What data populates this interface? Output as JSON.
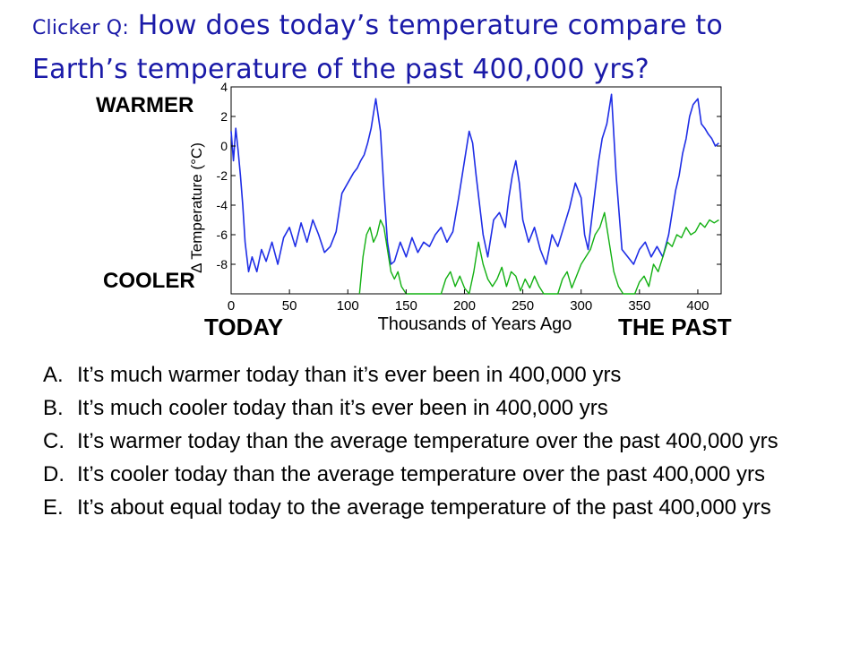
{
  "question": {
    "prefix": "Clicker Q:",
    "text_line1": "How does today’s temperature compare to",
    "text_line2": "Earth’s temperature of the past 400,000 yrs?"
  },
  "labels": {
    "warmer": "WARMER",
    "cooler": "COOLER",
    "today": "TODAY",
    "the_past": "THE PAST"
  },
  "answers": [
    {
      "letter": "A.",
      "text": "It’s much warmer today than it’s ever been in 400,000 yrs"
    },
    {
      "letter": "B.",
      "text": "It’s much cooler today than it’s ever been in 400,000 yrs"
    },
    {
      "letter": "C.",
      "text": "It’s warmer today than the average temperature over the past 400,000 yrs"
    },
    {
      "letter": "D.",
      "text": "It’s cooler today than the average temperature over the past 400,000 yrs"
    },
    {
      "letter": "E.",
      "text": "It’s about equal today to the average temperature of the past 400,000 yrs"
    }
  ],
  "chart_data": {
    "type": "line",
    "xlabel": "Thousands of Years Ago",
    "ylabel": "Δ Temperature (°C)",
    "xlim": [
      0,
      420
    ],
    "ylim": [
      -10,
      4
    ],
    "x_ticks": [
      0,
      50,
      100,
      150,
      200,
      250,
      300,
      350,
      400
    ],
    "y_ticks": [
      4,
      2,
      0,
      -2,
      -4,
      -6,
      -8
    ],
    "colors": {
      "blue": "#1f2ee6",
      "green": "#12b012"
    },
    "series": [
      {
        "color": "blue",
        "x": [
          0,
          2,
          4,
          6,
          8,
          10,
          12,
          15,
          18,
          22,
          26,
          30,
          35,
          40,
          45,
          50,
          55,
          60,
          65,
          70,
          75,
          80,
          85,
          90,
          95,
          100,
          105,
          108,
          111,
          114,
          117,
          120,
          124,
          128,
          131,
          134,
          137,
          140,
          145,
          150,
          155,
          160,
          165,
          170,
          175,
          180,
          185,
          190,
          195,
          198,
          201,
          204,
          207,
          210,
          213,
          216,
          220,
          225,
          230,
          235,
          238,
          241,
          244,
          247,
          250,
          255,
          260,
          265,
          270,
          275,
          280,
          285,
          290,
          295,
          300,
          303,
          306,
          309,
          312,
          315,
          318,
          322,
          326,
          330,
          335,
          340,
          345,
          350,
          355,
          360,
          365,
          370,
          375,
          378,
          381,
          384,
          387,
          390,
          393,
          396,
          400,
          403,
          406,
          409,
          412,
          415,
          418
        ],
        "y": [
          1,
          -1,
          1.2,
          -0.3,
          -2,
          -4,
          -6.5,
          -8.5,
          -7.5,
          -8.5,
          -7,
          -7.8,
          -6.5,
          -8,
          -6.2,
          -5.5,
          -6.8,
          -5.2,
          -6.5,
          -5,
          -6,
          -7.2,
          -6.8,
          -5.8,
          -3.2,
          -2.5,
          -1.8,
          -1.5,
          -1,
          -0.6,
          0.2,
          1.2,
          3.2,
          1,
          -3,
          -6.5,
          -8,
          -7.8,
          -6.5,
          -7.5,
          -6.2,
          -7.2,
          -6.5,
          -6.8,
          -6,
          -5.5,
          -6.5,
          -5.8,
          -3.5,
          -2,
          -0.5,
          1,
          0.2,
          -2,
          -4,
          -6,
          -7.5,
          -5,
          -4.5,
          -5.5,
          -3.5,
          -2,
          -1,
          -2.5,
          -5,
          -6.5,
          -5.5,
          -7,
          -8,
          -6,
          -6.8,
          -5.5,
          -4.2,
          -2.5,
          -3.5,
          -6,
          -7,
          -5,
          -3,
          -1,
          0.5,
          1.5,
          3.5,
          -2,
          -7,
          -7.5,
          -8,
          -7,
          -6.5,
          -7.5,
          -6.8,
          -7.5,
          -6,
          -4.5,
          -3,
          -2,
          -0.5,
          0.5,
          2,
          2.8,
          3.2,
          1.5,
          1.2,
          0.8,
          0.5,
          0,
          0.2
        ]
      },
      {
        "color": "green",
        "x": [
          110,
          113,
          116,
          119,
          122,
          125,
          128,
          131,
          134,
          137,
          140,
          143,
          146,
          150,
          180,
          184,
          188,
          192,
          196,
          200,
          204,
          208,
          212,
          216,
          220,
          224,
          228,
          232,
          236,
          240,
          244,
          248,
          252,
          256,
          260,
          264,
          268,
          280,
          284,
          288,
          292,
          296,
          300,
          304,
          308,
          312,
          316,
          320,
          324,
          328,
          332,
          336,
          346,
          350,
          354,
          358,
          362,
          366,
          370,
          374,
          378,
          382,
          386,
          390,
          394,
          398,
          402,
          406,
          410,
          414,
          418
        ],
        "y": [
          -10,
          -7.5,
          -6,
          -5.5,
          -6.5,
          -6,
          -5,
          -5.5,
          -7,
          -8.5,
          -9,
          -8.5,
          -9.5,
          -10,
          -10,
          -9,
          -8.5,
          -9.5,
          -8.8,
          -9.6,
          -10,
          -8.5,
          -6.5,
          -8,
          -9,
          -9.5,
          -9,
          -8.2,
          -9.5,
          -8.5,
          -8.8,
          -9.8,
          -9,
          -9.6,
          -8.8,
          -9.5,
          -10,
          -10,
          -9,
          -8.5,
          -9.6,
          -8.8,
          -8,
          -7.5,
          -7,
          -6,
          -5.5,
          -4.5,
          -6.5,
          -8.5,
          -9.5,
          -10,
          -10,
          -9.2,
          -8.8,
          -9.5,
          -8,
          -8.5,
          -7.5,
          -6.5,
          -6.8,
          -6,
          -6.2,
          -5.5,
          -6,
          -5.8,
          -5.2,
          -5.5,
          -5,
          -5.2,
          -5
        ]
      }
    ]
  }
}
